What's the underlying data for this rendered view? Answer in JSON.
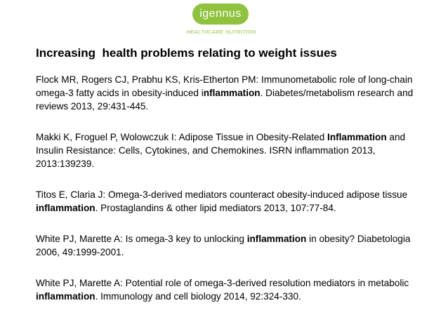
{
  "logo": {
    "name": "igennus",
    "tagline": "HEALTHCARE NUTRITION",
    "color": "#8fc33e"
  },
  "title": "Increasing  health problems relating to weight issues",
  "references": [
    {
      "before": "Flock MR, Rogers CJ, Prabhu KS, Kris-Etherton PM: Immunometabolic role of long-chain omega-3 fatty acids in obesity-induced i",
      "bold": "nflammation",
      "after": ". Diabetes/metabolism research and reviews 2013, 29:431-445."
    },
    {
      "before": "Makki K, Froguel P, Wolowczuk I: Adipose Tissue in Obesity-Related ",
      "bold": "Inflammation",
      "after": " and Insulin Resistance: Cells, Cytokines, and Chemokines. ISRN inflammation 2013, 2013:139239."
    },
    {
      "before": "Titos E, Claria J: Omega-3-derived mediators counteract obesity-induced adipose tissue ",
      "bold": "inflammation",
      "after": ". Prostaglandins & other lipid mediators 2013, 107:77-84."
    },
    {
      "before": "White PJ, Marette A: Is omega-3 key to unlocking ",
      "bold": "inflammation",
      "after": " in obesity? Diabetologia 2006, 49:1999-2001."
    },
    {
      "before": "White PJ, Marette A: Potential role of omega-3-derived resolution mediators in metabolic ",
      "bold": "inflammation",
      "after": ". Immunology and cell biology 2014, 92:324-330."
    }
  ]
}
